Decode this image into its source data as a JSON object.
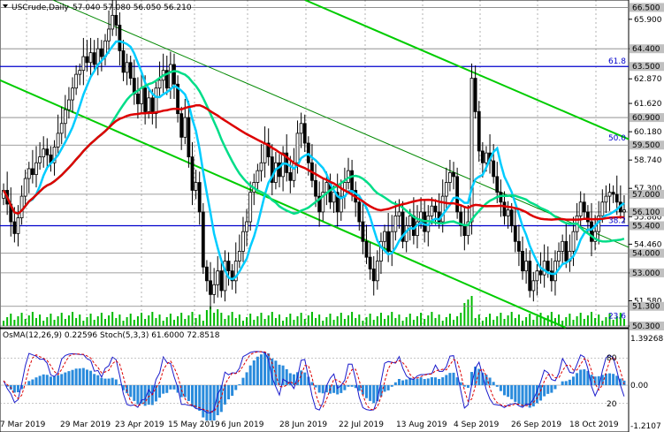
{
  "window": {
    "symbol_label": "USCrude,Daily",
    "ohlc_label": "57.040 57.080 56.050 56.210"
  },
  "chart_data": {
    "type": "candlestick",
    "symbol": "USCrude",
    "timeframe": "Daily",
    "last_ohlc": {
      "open": 57.04,
      "high": 57.08,
      "low": 56.05,
      "close": 56.21
    },
    "y_range": [
      50.3,
      66.7
    ],
    "price_axis_ticks": [
      "65.900",
      "64.400",
      "62.870",
      "61.620",
      "60.180",
      "58.740",
      "57.300",
      "55.860",
      "54.460",
      "53.000",
      "51.580",
      "50.300"
    ],
    "price_labels": [
      {
        "text": "66.500",
        "value": 66.5,
        "bg": "#c0c0c0"
      },
      {
        "text": "64.400",
        "value": 64.4,
        "bg": "#c0c0c0"
      },
      {
        "text": "63.500",
        "value": 63.5,
        "bg": "#c0c0c0"
      },
      {
        "text": "60.900",
        "value": 60.9,
        "bg": "#c0c0c0"
      },
      {
        "text": "59.500",
        "value": 59.5,
        "bg": "#c0c0c0"
      },
      {
        "text": "57.000",
        "value": 57.0,
        "bg": "#c0c0c0"
      },
      {
        "text": "56.100",
        "value": 56.1,
        "bg": "#c0c0c0"
      },
      {
        "text": "55.400",
        "value": 55.4,
        "bg": "#c0c0c0"
      },
      {
        "text": "54.000",
        "value": 54.0,
        "bg": "#c0c0c0"
      },
      {
        "text": "53.000",
        "value": 53.0,
        "bg": "#c0c0c0"
      },
      {
        "text": "51.300",
        "value": 51.3,
        "bg": "#c0c0c0"
      },
      {
        "text": "50.300",
        "value": 50.3,
        "bg": "#c0c0c0"
      }
    ],
    "fib_levels": [
      {
        "label": "61.8",
        "value": 63.5
      },
      {
        "label": "50.0",
        "value": 59.6
      },
      {
        "label": "38.2",
        "value": 55.4
      },
      {
        "label": "23.6",
        "value": 50.55
      }
    ],
    "x_labels": [
      "7 Mar 2019",
      "29 Mar 2019",
      "23 Apr 2019",
      "15 May 2019",
      "6 Jun 2019",
      "28 Jun 2019",
      "22 Jul 2019",
      "13 Aug 2019",
      "4 Sep 2019",
      "26 Sep 2019",
      "18 Oct 2019"
    ],
    "closes": [
      57.2,
      56.5,
      55.6,
      55.0,
      55.8,
      56.9,
      57.8,
      58.3,
      58.0,
      58.6,
      58.9,
      59.3,
      59.0,
      58.6,
      59.4,
      60.1,
      60.6,
      61.3,
      61.8,
      62.4,
      63.1,
      63.3,
      64.0,
      63.7,
      64.2,
      63.6,
      64.4,
      64.0,
      64.8,
      65.4,
      66.1,
      65.6,
      64.3,
      63.2,
      63.7,
      62.9,
      62.1,
      61.6,
      62.4,
      61.2,
      61.9,
      61.1,
      62.4,
      62.8,
      63.3,
      62.4,
      63.6,
      62.6,
      61.1,
      59.9,
      60.9,
      58.9,
      57.2,
      57.6,
      56.1,
      53.3,
      52.6,
      51.9,
      52.4,
      53.1,
      52.1,
      53.6,
      53.1,
      52.6,
      53.6,
      54.1,
      55.1,
      55.6,
      57.1,
      57.6,
      58.2,
      58.6,
      59.6,
      58.9,
      57.6,
      58.6,
      57.9,
      59.1,
      58.1,
      57.7,
      58.6,
      60.1,
      60.6,
      59.6,
      58.6,
      57.7,
      56.9,
      56.1,
      57.1,
      57.6,
      56.6,
      57.1,
      56.1,
      56.9,
      57.6,
      58.2,
      57.2,
      56.6,
      55.6,
      54.6,
      53.8,
      53.2,
      52.6,
      53.6,
      54.6,
      55.1,
      54.1,
      55.1,
      55.9,
      56.1,
      54.6,
      55.4,
      55.9,
      54.9,
      55.6,
      56.1,
      55.1,
      55.9,
      56.4,
      56.1,
      55.6,
      56.9,
      57.6,
      58.1,
      57.9,
      56.1,
      55.4,
      54.9,
      55.6,
      62.9,
      61.2,
      59.2,
      58.6,
      59.1,
      58.7,
      57.9,
      57.1,
      56.6,
      55.9,
      56.2,
      55.4,
      54.6,
      54.1,
      53.1,
      53.6,
      52.1,
      52.6,
      53.1,
      52.9,
      53.6,
      53.1,
      52.6,
      53.6,
      54.1,
      54.6,
      53.6,
      54.1,
      55.1,
      55.9,
      56.6,
      56.1,
      55.6,
      54.6,
      55.1,
      55.9,
      56.6,
      56.9,
      57.1,
      57.0,
      56.6,
      56.1,
      56.2
    ],
    "volume_note": "histogram at bottom of price pane",
    "indicators": {
      "osma": {
        "params": "OsMA(12,26,9)",
        "value": "0.22596"
      },
      "stoch": {
        "params": "Stoch(5,3,3)",
        "main": "61.6000",
        "signal": "72.8518"
      },
      "label": "OsMA(12,26,9) 0.22596  Stoch(5,3,3) 61.6000 72.8518",
      "left_scale": [
        "80",
        "20"
      ],
      "right_scale": [
        "1.39268",
        "0.00",
        "-1.2107"
      ]
    }
  }
}
